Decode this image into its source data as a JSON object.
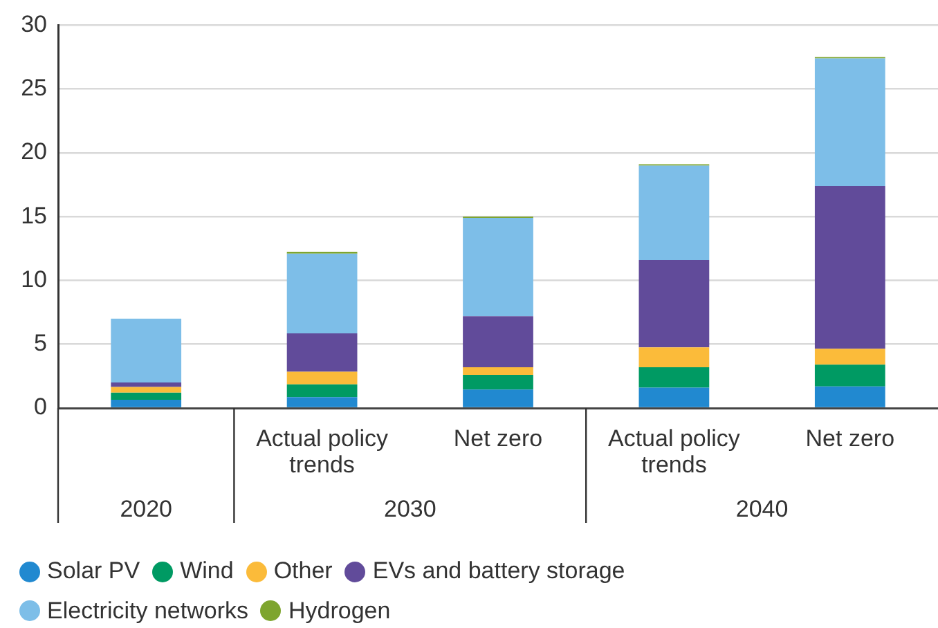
{
  "chart_data": {
    "type": "bar",
    "stacked": true,
    "categories": [
      null,
      "Actual policy trends",
      "Net zero",
      "Actual policy trends",
      "Net zero"
    ],
    "annotations": [
      "2020",
      "2030",
      "2040"
    ],
    "series": [
      {
        "name": "Solar PV",
        "color": "#2189d0",
        "values": [
          0.65,
          0.85,
          1.45,
          1.6,
          1.7
        ]
      },
      {
        "name": "Wind",
        "color": "#009a63",
        "values": [
          0.55,
          1.0,
          1.15,
          1.6,
          1.7
        ]
      },
      {
        "name": "Other",
        "color": "#fbbb3a",
        "values": [
          0.45,
          1.0,
          0.6,
          1.55,
          1.25
        ]
      },
      {
        "name": "EVs and battery storage",
        "color": "#614b9a",
        "values": [
          0.35,
          3.0,
          4.0,
          6.85,
          12.75
        ]
      },
      {
        "name": "Electricity networks",
        "color": "#7dbee8",
        "values": [
          5.0,
          6.25,
          7.7,
          7.4,
          10.0
        ]
      },
      {
        "name": "Hydrogen",
        "color": "#7ea52e",
        "values": [
          0,
          0.15,
          0.1,
          0.1,
          0.1
        ]
      }
    ],
    "ylim": [
      0,
      30
    ],
    "yticks": [
      0,
      5,
      10,
      15,
      20,
      25,
      30
    ],
    "grid": true,
    "legend": "bottom"
  }
}
